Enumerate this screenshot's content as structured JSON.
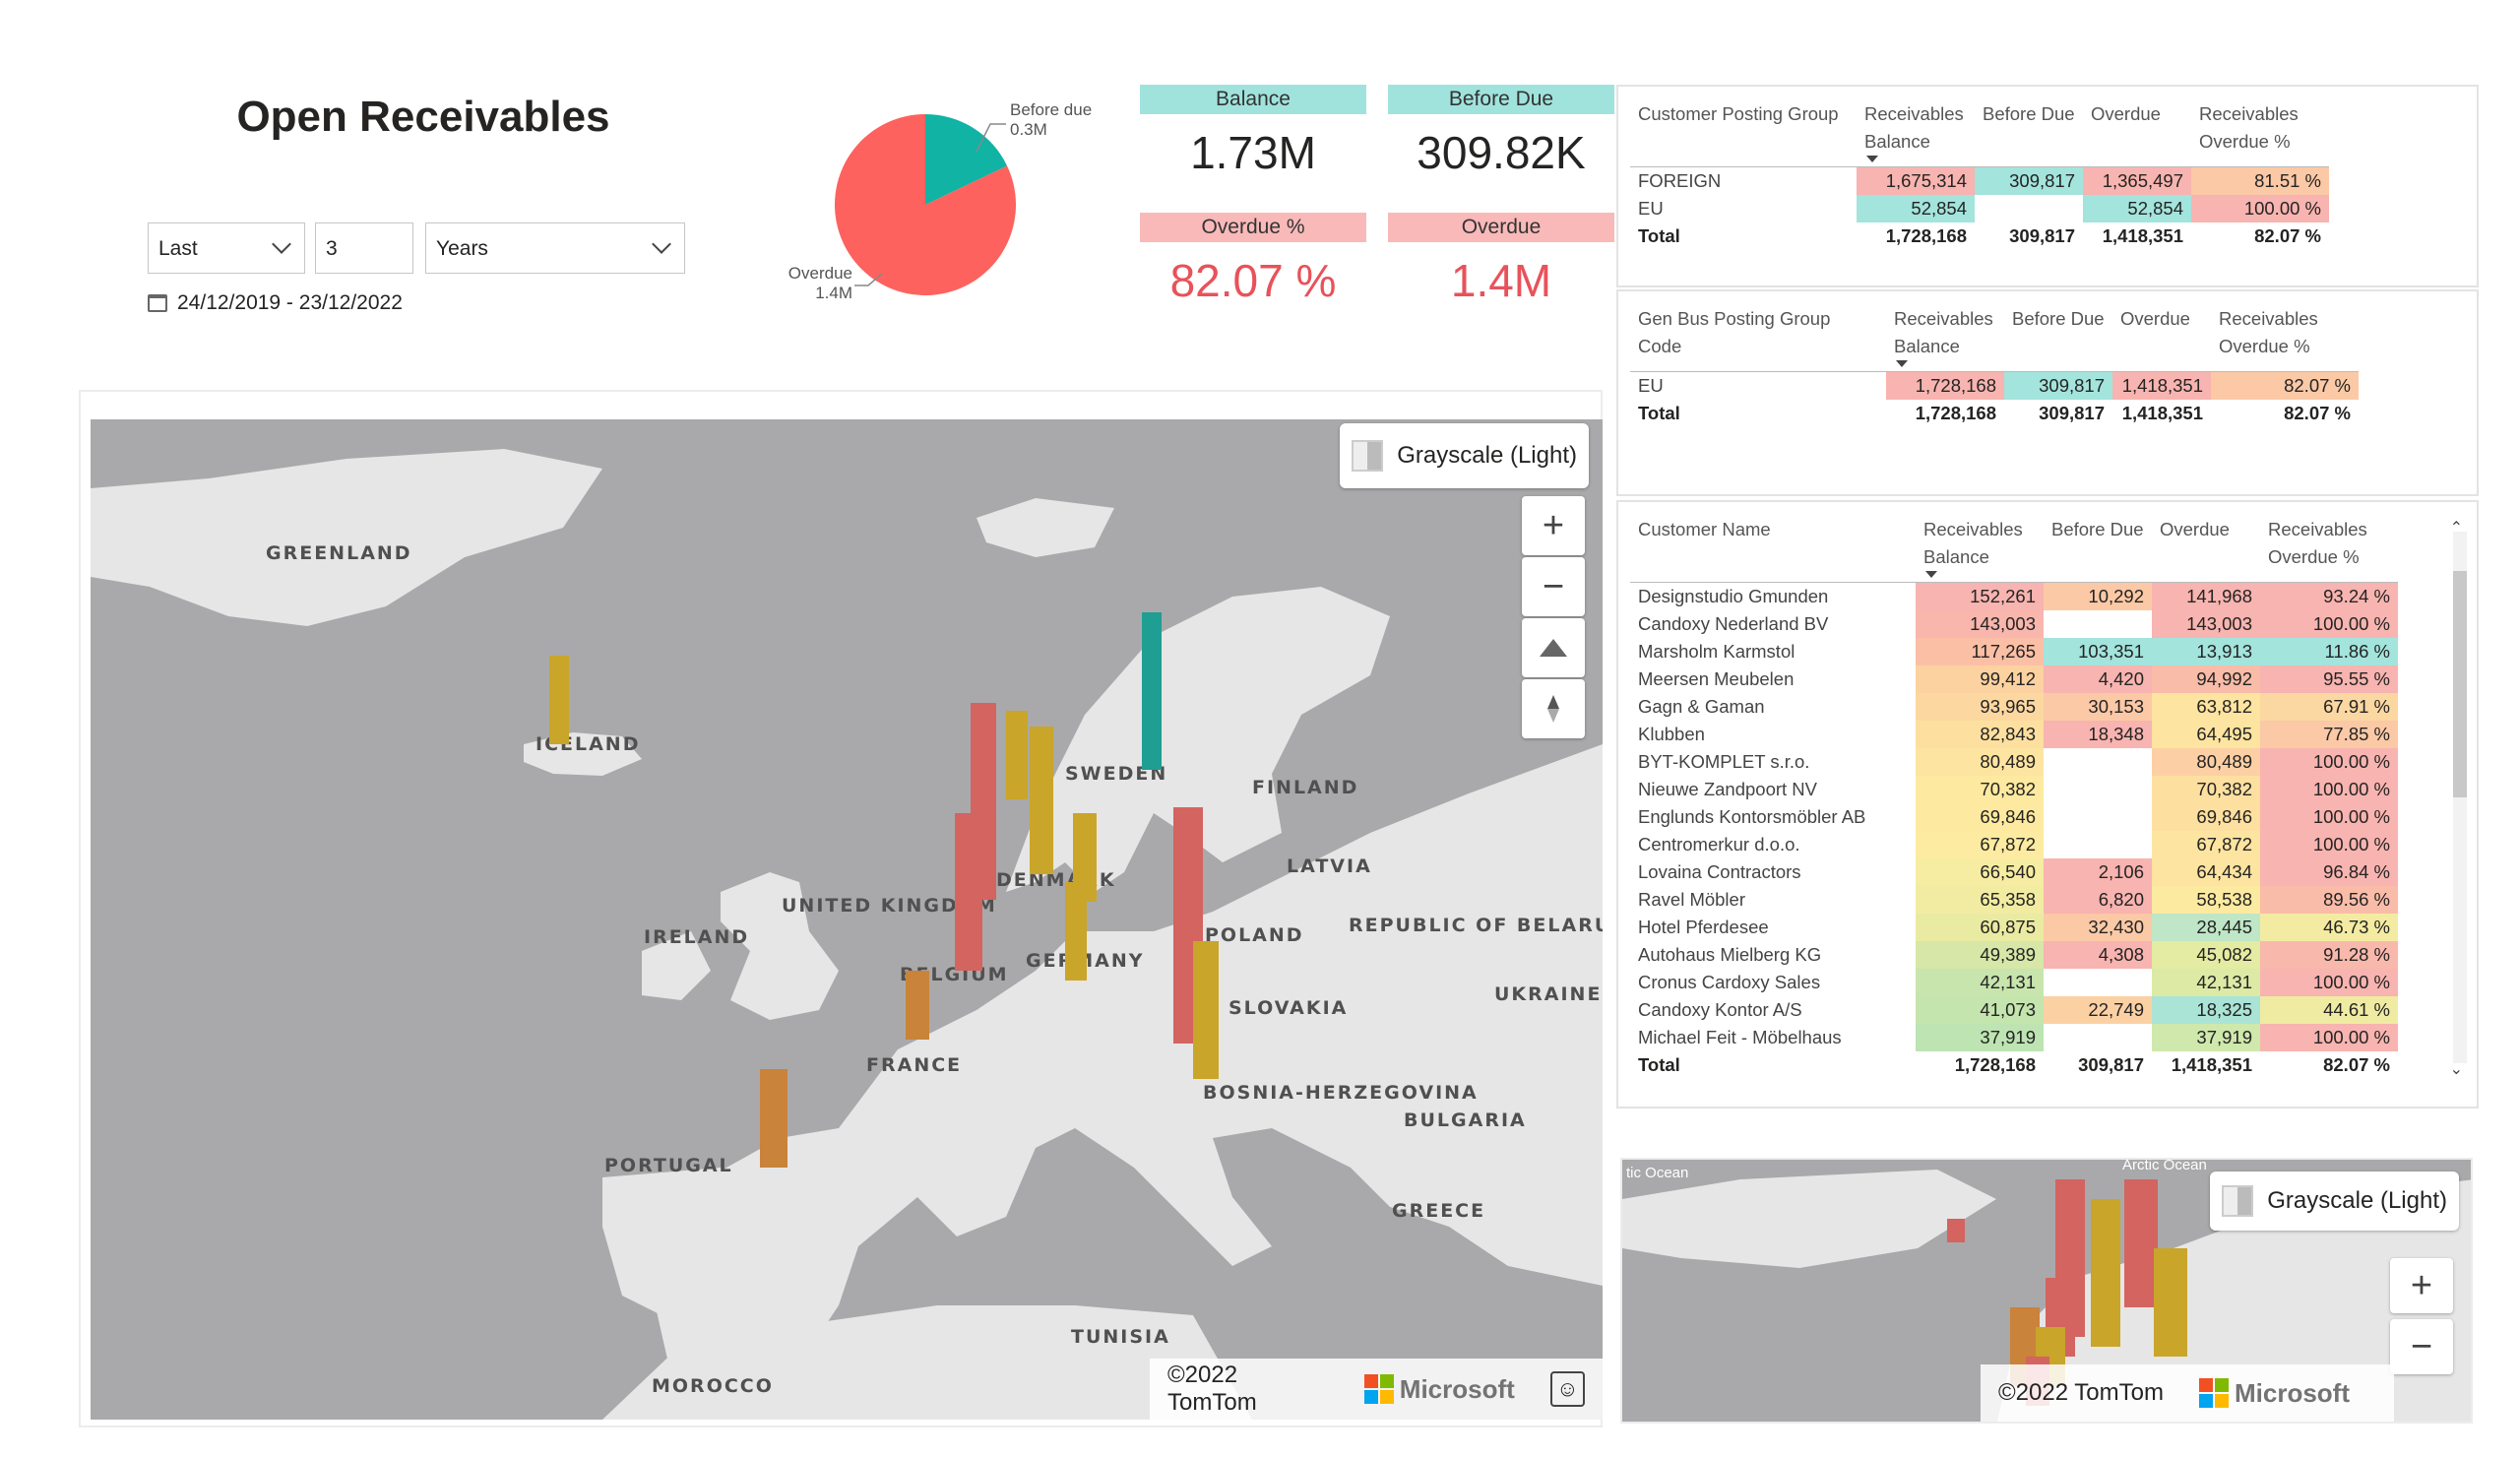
{
  "title": "Open Receivables",
  "slicer": {
    "mode": "Last",
    "count": "3",
    "unit": "Years",
    "range": "24/12/2019 - 23/12/2022"
  },
  "pie": {
    "slices": [
      {
        "label": "Before due",
        "value_label": "0.3M",
        "value": 309817,
        "color": "#11b3a5"
      },
      {
        "label": "Overdue",
        "value_label": "1.4M",
        "value": 1418351,
        "color": "#fd625e"
      }
    ]
  },
  "kpis": [
    {
      "label": "Balance",
      "value": "1.73M",
      "head_color": "#a0e3dd",
      "value_style": "normal"
    },
    {
      "label": "Before Due",
      "value": "309.82K",
      "head_color": "#a0e3dd",
      "value_style": "normal"
    },
    {
      "label": "Overdue %",
      "value": "82.07 %",
      "head_color": "#f9b9b9",
      "value_style": "red"
    },
    {
      "label": "Overdue",
      "value": "1.4M",
      "head_color": "#f9b9b9",
      "value_style": "red"
    }
  ],
  "table1": {
    "headers": [
      "Customer Posting Group",
      "Receivables Balance",
      "Before Due",
      "Overdue",
      "Receivables Overdue %"
    ],
    "rows": [
      {
        "cells": [
          "FOREIGN",
          "1,675,314",
          "309,817",
          "1,365,497",
          "81.51 %"
        ],
        "colors": [
          "",
          "#f8b4b0",
          "#a3e4dd",
          "#f8b4b0",
          "#fbc9a6"
        ]
      },
      {
        "cells": [
          "EU",
          "52,854",
          "",
          "52,854",
          "100.00 %"
        ],
        "colors": [
          "",
          "#a3e4dd",
          "",
          "#a3e4dd",
          "#f8b4b0"
        ]
      }
    ],
    "total": [
      "Total",
      "1,728,168",
      "309,817",
      "1,418,351",
      "82.07 %"
    ]
  },
  "table2": {
    "headers": [
      "Gen Bus Posting Group Code",
      "Receivables Balance",
      "Before Due",
      "Overdue",
      "Receivables Overdue %"
    ],
    "rows": [
      {
        "cells": [
          "EU",
          "1,728,168",
          "309,817",
          "1,418,351",
          "82.07 %"
        ],
        "colors": [
          "",
          "#f8b4b0",
          "#a3e4dd",
          "#f8b4b0",
          "#fbc9a6"
        ]
      }
    ],
    "total": [
      "Total",
      "1,728,168",
      "309,817",
      "1,418,351",
      "82.07 %"
    ]
  },
  "table3": {
    "headers": [
      "Customer Name",
      "Receivables Balance",
      "Before Due",
      "Overdue",
      "Receivables Overdue %"
    ],
    "rows": [
      {
        "cells": [
          "Designstudio Gmunden",
          "152,261",
          "10,292",
          "141,968",
          "93.24 %"
        ],
        "colors": [
          "",
          "#f8b4b0",
          "#fbc9a6",
          "#f8b4b0",
          "#f8b4b0"
        ]
      },
      {
        "cells": [
          "Candoxy Nederland BV",
          "143,003",
          "",
          "143,003",
          "100.00 %"
        ],
        "colors": [
          "",
          "#f8b6ad",
          "",
          "#f8b4b0",
          "#f8b4b0"
        ]
      },
      {
        "cells": [
          "Marsholm Karmstol",
          "117,265",
          "103,351",
          "13,913",
          "11.86 %"
        ],
        "colors": [
          "",
          "#fbbfa6",
          "#a3e4dd",
          "#a3e4dd",
          "#a3e4dd"
        ]
      },
      {
        "cells": [
          "Meersen Meubelen",
          "99,412",
          "4,420",
          "94,992",
          "95.55 %"
        ],
        "colors": [
          "",
          "#fcd2a0",
          "#f8b4b0",
          "#f9bca8",
          "#f8b4b0"
        ]
      },
      {
        "cells": [
          "Gagn & Gaman",
          "93,965",
          "30,153",
          "63,812",
          "67.91 %"
        ],
        "colors": [
          "",
          "#fcd8a0",
          "#fbc9a6",
          "#fde4a0",
          "#fbd7a2"
        ]
      },
      {
        "cells": [
          "Klubben",
          "82,843",
          "18,348",
          "64,495",
          "77.85 %"
        ],
        "colors": [
          "",
          "#fde0a0",
          "#f8b4b0",
          "#fde4a0",
          "#fbc9a6"
        ]
      },
      {
        "cells": [
          "BYT-KOMPLET s.r.o.",
          "80,489",
          "",
          "80,489",
          "100.00 %"
        ],
        "colors": [
          "",
          "#fde4a0",
          "",
          "#fcd0a4",
          "#f8b4b0"
        ]
      },
      {
        "cells": [
          "Nieuwe Zandpoort NV",
          "70,382",
          "",
          "70,382",
          "100.00 %"
        ],
        "colors": [
          "",
          "#fdeaa0",
          "",
          "#fde0a0",
          "#f8b4b0"
        ]
      },
      {
        "cells": [
          "Englunds Kontorsmöbler AB",
          "69,846",
          "",
          "69,846",
          "100.00 %"
        ],
        "colors": [
          "",
          "#fdeaa0",
          "",
          "#fde0a0",
          "#f8b4b0"
        ]
      },
      {
        "cells": [
          "Centromerkur d.o.o.",
          "67,872",
          "",
          "67,872",
          "100.00 %"
        ],
        "colors": [
          "",
          "#fcebA0",
          "",
          "#fde4a0",
          "#f8b4b0"
        ]
      },
      {
        "cells": [
          "Lovaina Contractors",
          "66,540",
          "2,106",
          "64,434",
          "96.84 %"
        ],
        "colors": [
          "",
          "#f6eca2",
          "#f8b4b0",
          "#fde4a0",
          "#f8b4b0"
        ]
      },
      {
        "cells": [
          "Ravel Möbler",
          "65,358",
          "6,820",
          "58,538",
          "89.56 %"
        ],
        "colors": [
          "",
          "#f2eca2",
          "#f8b4b0",
          "#fceaa0",
          "#f9bca8"
        ]
      },
      {
        "cells": [
          "Hotel Pferdesee",
          "60,875",
          "32,430",
          "28,445",
          "46.73 %"
        ],
        "colors": [
          "",
          "#eaeba2",
          "#fbc9a6",
          "#bfe6c6",
          "#f4eba2"
        ]
      },
      {
        "cells": [
          "Autohaus Mielberg KG",
          "49,389",
          "4,308",
          "45,082",
          "91.28 %"
        ],
        "colors": [
          "",
          "#d6e7a8",
          "#f8b4b0",
          "#e4eba2",
          "#f8b8ac"
        ]
      },
      {
        "cells": [
          "Cronus Cardoxy Sales",
          "42,131",
          "",
          "42,131",
          "100.00 %"
        ],
        "colors": [
          "",
          "#c7e5ad",
          "",
          "#dcEAa6",
          "#f8b4b0"
        ]
      },
      {
        "cells": [
          "Candoxy Kontor A/S",
          "41,073",
          "22,749",
          "18,325",
          "44.61 %"
        ],
        "colors": [
          "",
          "#c4e5ae",
          "#fbd1a4",
          "#a9e4d6",
          "#f0eba2"
        ]
      },
      {
        "cells": [
          "Michael Feit - Möbelhaus",
          "37,919",
          "",
          "37,919",
          "100.00 %"
        ],
        "colors": [
          "",
          "#bde4b2",
          "",
          "#cfe8ab",
          "#f8b4b0"
        ]
      }
    ],
    "total": [
      "Total",
      "1,728,168",
      "309,817",
      "1,418,351",
      "82.07 %"
    ]
  },
  "map": {
    "style_label": "Grayscale (Light)",
    "attribution": "©2022 TomTom",
    "brand": "Microsoft",
    "zoom_in": "+",
    "zoom_out": "−",
    "places": [
      {
        "name": "GREENLAND"
      },
      {
        "name": "ICELAND"
      },
      {
        "name": "SWEDEN"
      },
      {
        "name": "FINLAND"
      },
      {
        "name": "DENMARK"
      },
      {
        "name": "LATVIA"
      },
      {
        "name": "UNITED KINGDOM"
      },
      {
        "name": "IRELAND"
      },
      {
        "name": "REPUBLIC OF BELARUS"
      },
      {
        "name": "POLAND"
      },
      {
        "name": "BELGIUM"
      },
      {
        "name": "GERMANY"
      },
      {
        "name": "UKRAINE"
      },
      {
        "name": "SLOVAKIA"
      },
      {
        "name": "FRANCE"
      },
      {
        "name": "BOSNIA-HERZEGOVINA"
      },
      {
        "name": "BULGARIA"
      },
      {
        "name": "PORTUGAL"
      },
      {
        "name": "GREECE"
      },
      {
        "name": "TUNISIA"
      },
      {
        "name": "MOROCCO"
      }
    ]
  },
  "minimap": {
    "style_label": "Grayscale (Light)",
    "attribution": "©2022 TomTom",
    "brand": "Microsoft",
    "ocean_left": "tic Ocean",
    "ocean_right": "Arctic Ocean"
  }
}
